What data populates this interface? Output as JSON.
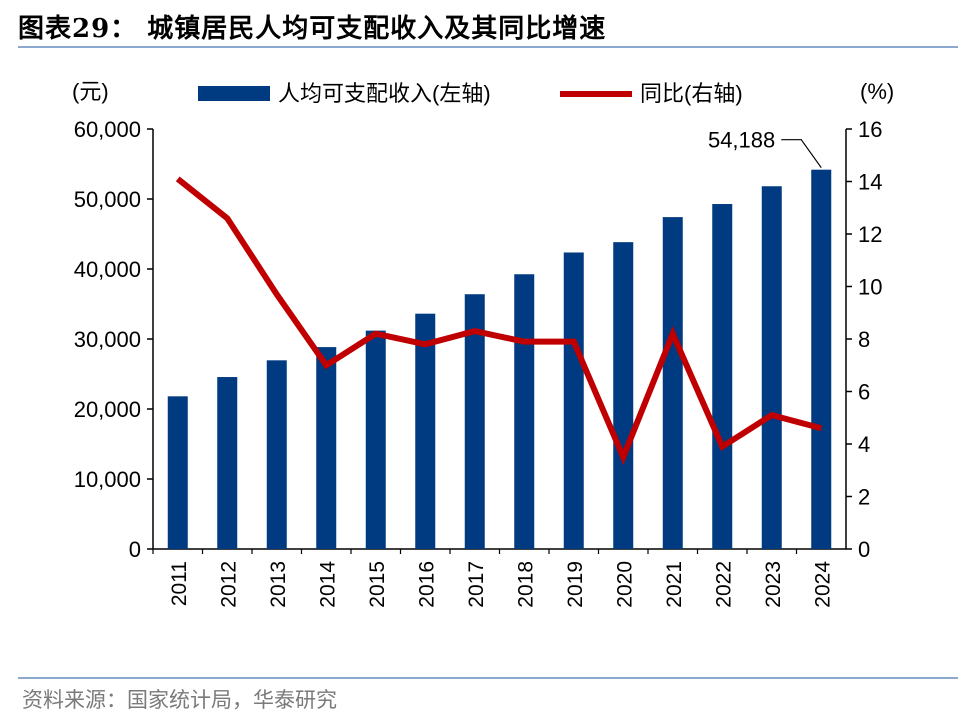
{
  "title": "图表29： 城镇居民人均可支配收入及其同比增速",
  "source": "资料来源：国家统计局，华泰研究",
  "chart_data": {
    "type": "bar",
    "categories": [
      "2011",
      "2012",
      "2013",
      "2014",
      "2015",
      "2016",
      "2017",
      "2018",
      "2019",
      "2020",
      "2021",
      "2022",
      "2023",
      "2024"
    ],
    "series": [
      {
        "name": "人均可支配收入(左轴)",
        "type": "bar",
        "axis": "left",
        "values": [
          21810,
          24565,
          26955,
          28844,
          31195,
          33616,
          36396,
          39251,
          42359,
          43834,
          47412,
          49283,
          51821,
          54188
        ],
        "color": "#003a80"
      },
      {
        "name": "同比(右轴)",
        "type": "line",
        "axis": "right",
        "values": [
          14.1,
          12.6,
          9.7,
          7.0,
          8.2,
          7.8,
          8.3,
          7.9,
          7.9,
          3.5,
          8.2,
          3.9,
          5.1,
          4.6
        ],
        "color": "#c00000"
      }
    ],
    "y_left": {
      "unit": "(元)",
      "ylim": [
        0,
        60000
      ],
      "ticks": [
        "0",
        "10,000",
        "20,000",
        "30,000",
        "40,000",
        "50,000",
        "60,000"
      ]
    },
    "y_right": {
      "unit": "(%)",
      "ylim": [
        0,
        16
      ],
      "ticks": [
        "0",
        "2",
        "4",
        "6",
        "8",
        "10",
        "12",
        "14",
        "16"
      ]
    },
    "annotation": {
      "text": "54,188",
      "category": "2024"
    },
    "grid": false,
    "legend": "top-center"
  }
}
